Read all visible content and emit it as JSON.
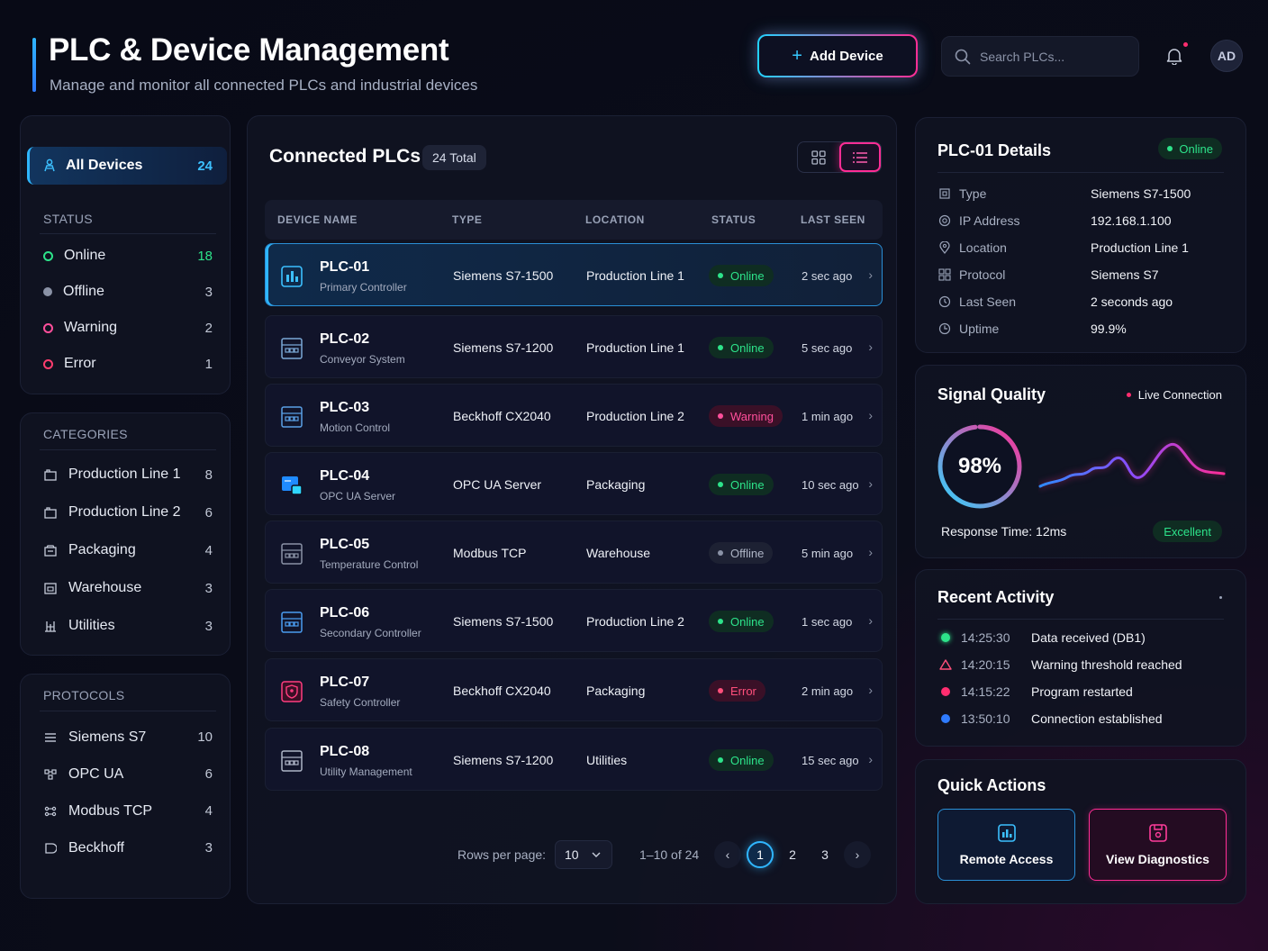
{
  "header": {
    "title": "PLC & Device Management",
    "subtitle": "Manage and monitor all connected PLCs and industrial devices",
    "add_button": "Add Device",
    "search_placeholder": "Search PLCs...",
    "avatar": "AD"
  },
  "sidebar": {
    "all_devices": {
      "label": "All Devices",
      "count": "24"
    },
    "status": {
      "heading": "STATUS",
      "items": [
        {
          "label": "Online",
          "count": "18",
          "color": "#2de38a"
        },
        {
          "label": "Offline",
          "count": "3",
          "color": "#8a92a6"
        },
        {
          "label": "Warning",
          "count": "2",
          "color": "#ff4f9b"
        },
        {
          "label": "Error",
          "count": "1",
          "color": "#ff3d6e"
        }
      ]
    },
    "categories": {
      "heading": "CATEGORIES",
      "items": [
        {
          "label": "Production Line 1",
          "count": "8"
        },
        {
          "label": "Production Line 2",
          "count": "6"
        },
        {
          "label": "Packaging",
          "count": "4"
        },
        {
          "label": "Warehouse",
          "count": "3"
        },
        {
          "label": "Utilities",
          "count": "3"
        }
      ]
    },
    "protocols": {
      "heading": "PROTOCOLS",
      "items": [
        {
          "label": "Siemens S7",
          "count": "10"
        },
        {
          "label": "OPC UA",
          "count": "6"
        },
        {
          "label": "Modbus TCP",
          "count": "4"
        },
        {
          "label": "Beckhoff",
          "count": "3"
        }
      ]
    }
  },
  "table": {
    "title": "Connected PLCs",
    "total": "24 Total",
    "columns": [
      "DEVICE NAME",
      "TYPE",
      "LOCATION",
      "STATUS",
      "LAST SEEN"
    ],
    "rows": [
      {
        "name": "PLC-01",
        "desc": "Primary Controller",
        "type": "Siemens S7-1500",
        "location": "Production Line 1",
        "status": "Online",
        "last_seen": "2 sec ago"
      },
      {
        "name": "PLC-02",
        "desc": "Conveyor System",
        "type": "Siemens S7-1200",
        "location": "Production Line 1",
        "status": "Online",
        "last_seen": "5 sec ago"
      },
      {
        "name": "PLC-03",
        "desc": "Motion Control",
        "type": "Beckhoff CX2040",
        "location": "Production Line 2",
        "status": "Warning",
        "last_seen": "1 min ago"
      },
      {
        "name": "PLC-04",
        "desc": "OPC UA Server",
        "type": "OPC UA Server",
        "location": "Packaging",
        "status": "Online",
        "last_seen": "10 sec ago"
      },
      {
        "name": "PLC-05",
        "desc": "Temperature Control",
        "type": "Modbus TCP",
        "location": "Warehouse",
        "status": "Offline",
        "last_seen": "5 min ago"
      },
      {
        "name": "PLC-06",
        "desc": "Secondary Controller",
        "type": "Siemens S7-1500",
        "location": "Production Line 2",
        "status": "Online",
        "last_seen": "1 sec ago"
      },
      {
        "name": "PLC-07",
        "desc": "Safety Controller",
        "type": "Beckhoff CX2040",
        "location": "Packaging",
        "status": "Error",
        "last_seen": "2 min ago"
      },
      {
        "name": "PLC-08",
        "desc": "Utility Management",
        "type": "Siemens S7-1200",
        "location": "Utilities",
        "status": "Online",
        "last_seen": "15 sec ago"
      }
    ],
    "pagination": {
      "rows_label": "Rows per page:",
      "rows_value": "10",
      "range": "1–10 of 24",
      "pages": [
        "1",
        "2",
        "3"
      ],
      "current": "1"
    }
  },
  "details": {
    "title": "PLC-01 Details",
    "status": "Online",
    "fields": [
      {
        "key": "Type",
        "value": "Siemens S7-1500"
      },
      {
        "key": "IP Address",
        "value": "192.168.1.100"
      },
      {
        "key": "Location",
        "value": "Production Line 1"
      },
      {
        "key": "Protocol",
        "value": "Siemens S7"
      },
      {
        "key": "Last Seen",
        "value": "2 seconds ago"
      },
      {
        "key": "Uptime",
        "value": "99.9%"
      }
    ]
  },
  "signal": {
    "title": "Signal Quality",
    "live_label": "Live Connection",
    "quality": "98%",
    "quality_value": 98,
    "response": "Response Time: 12ms",
    "rating": "Excellent"
  },
  "activity": {
    "title": "Recent Activity",
    "items": [
      {
        "time": "14:25:30",
        "message": "Data received (DB1)",
        "color": "#2de38a"
      },
      {
        "time": "14:20:15",
        "message": "Warning threshold reached",
        "color": "#ff4f7b"
      },
      {
        "time": "14:15:22",
        "message": "Program restarted",
        "color": "#ff2d6f"
      },
      {
        "time": "13:50:10",
        "message": "Connection established",
        "color": "#2f7bff"
      }
    ]
  },
  "quick_actions": {
    "title": "Quick Actions",
    "remote": "Remote Access",
    "diagnostics": "View Diagnostics"
  }
}
